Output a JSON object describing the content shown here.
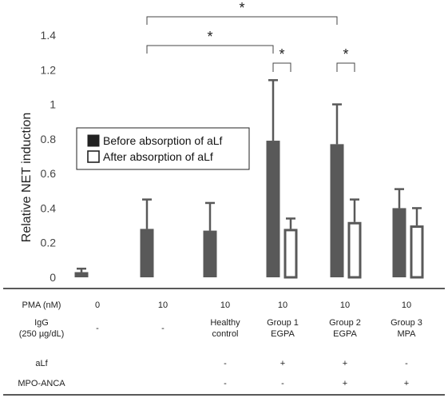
{
  "chart_data": {
    "type": "bar",
    "title": "",
    "xlabel": "",
    "ylabel": "Relative NET induction",
    "ylim": [
      0,
      1.4
    ],
    "yticks": [
      "0",
      "0.2",
      "0.4",
      "0.6",
      "0.8",
      "1",
      "1.2",
      "1.4"
    ],
    "grid": false,
    "legend_position": "center-left",
    "colors": {
      "before": "#595959",
      "after": "#ffffff",
      "outline": "#595959"
    },
    "series": [
      {
        "name": "Before absorption of aLf",
        "values": [
          0.03,
          0.28,
          0.27,
          0.79,
          0.77,
          0.4
        ],
        "errors": [
          0.02,
          0.17,
          0.16,
          0.35,
          0.23,
          0.11
        ]
      },
      {
        "name": "After absorption of aLf",
        "values": [
          null,
          null,
          null,
          0.28,
          0.32,
          0.3
        ],
        "errors": [
          null,
          null,
          null,
          0.06,
          0.13,
          0.1
        ]
      }
    ],
    "significance": [
      {
        "from_group": 1,
        "from_series": 0,
        "to_group": 3,
        "to_series": 0,
        "label": "*",
        "level": 1
      },
      {
        "from_group": 1,
        "from_series": 0,
        "to_group": 4,
        "to_series": 0,
        "label": "*",
        "level": 2
      },
      {
        "from_group": 3,
        "from_series": 0,
        "to_group": 3,
        "to_series": 1,
        "label": "*",
        "level": 0
      },
      {
        "from_group": 4,
        "from_series": 0,
        "to_group": 4,
        "to_series": 1,
        "label": "*",
        "level": 0
      }
    ],
    "table": {
      "rows": [
        {
          "label": [
            "PMA (nM)"
          ],
          "cells": [
            [
              "0"
            ],
            [
              "10"
            ],
            [
              "10"
            ],
            [
              "10"
            ],
            [
              "10"
            ],
            [
              "10"
            ]
          ]
        },
        {
          "label": [
            "IgG",
            "(250 µg/dL)"
          ],
          "cells": [
            [
              "-"
            ],
            [
              "-"
            ],
            [
              "Healthy",
              "control"
            ],
            [
              "Group 1",
              "EGPA"
            ],
            [
              "Group 2",
              "EGPA"
            ],
            [
              "Group 3",
              "MPA"
            ]
          ]
        },
        {
          "label": [
            "aLf"
          ],
          "cells": [
            [],
            [],
            [
              "-"
            ],
            [
              "+"
            ],
            [
              "+"
            ],
            [
              "-"
            ]
          ]
        },
        {
          "label": [
            "MPO-ANCA"
          ],
          "cells": [
            [],
            [],
            [
              "-"
            ],
            [
              "-"
            ],
            [
              "+"
            ],
            [
              "+"
            ]
          ]
        }
      ]
    }
  }
}
